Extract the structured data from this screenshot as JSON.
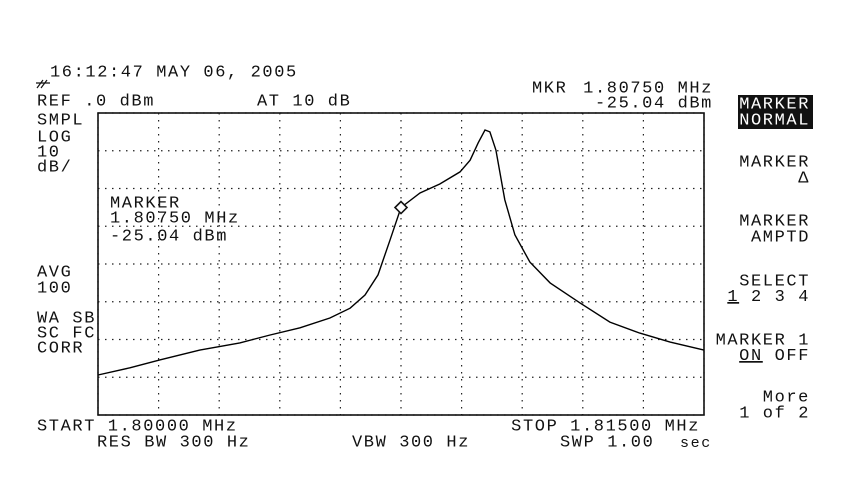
{
  "header": {
    "timestamp": "16:12:47 MAY 06, 2005",
    "ref": "REF .0 dBm",
    "atten": "AT 10 dB",
    "marker_readout_label": "MKR"
  },
  "left_annotations": [
    "SMPL",
    "LOG",
    "10",
    "dB/",
    "AVG",
    "100",
    "WA SB",
    "SC FC",
    "CORR"
  ],
  "footer": {
    "start": "START 1.80000 MHz",
    "stop": "STOP 1.81500 MHz",
    "rbw": "RES BW 300 Hz",
    "vbw": "VBW 300 Hz",
    "sweep": "SWP 1.00",
    "sweep_unit": "sec"
  },
  "softkeys": [
    {
      "lines": [
        "MARKER",
        "NORMAL"
      ],
      "active": true
    },
    {
      "lines": [
        "MARKER",
        "Δ"
      ]
    },
    {
      "lines": [
        "MARKER",
        "AMPTD"
      ]
    },
    {
      "lines": [
        "SELECT"
      ],
      "options": [
        "1",
        "2",
        "3",
        "4"
      ]
    },
    {
      "lines": [
        "MARKER 1"
      ],
      "options": [
        "ON",
        "OFF"
      ]
    },
    {
      "lines": [
        "More",
        "1 of 2"
      ]
    }
  ],
  "chart_data": {
    "type": "line",
    "x": [
      1.8,
      1.80079,
      1.80153,
      1.80252,
      1.80351,
      1.80426,
      1.805,
      1.80574,
      1.80624,
      1.80661,
      1.80693,
      1.80723,
      1.8075,
      1.80797,
      1.80846,
      1.80896,
      1.80921,
      1.80941,
      1.80958,
      1.8097,
      1.80985,
      1.81007,
      1.81032,
      1.81069,
      1.81119,
      1.81193,
      1.81267,
      1.81341,
      1.81416,
      1.815
    ],
    "series": [
      {
        "color": "#000000",
        "values": [
          -69.4,
          -67.5,
          -65.4,
          -62.8,
          -60.9,
          -58.8,
          -56.9,
          -54.3,
          -51.7,
          -48.2,
          -42.9,
          -33.6,
          -25.04,
          -21.2,
          -18.8,
          -15.6,
          -12.5,
          -7.9,
          -4.5,
          -5.0,
          -9.8,
          -23.0,
          -32.3,
          -39.5,
          -45.0,
          -50.3,
          -55.4,
          -58.3,
          -60.7,
          -62.8
        ]
      }
    ],
    "xlim": [
      1.8,
      1.815
    ],
    "ylim": [
      -80,
      0
    ],
    "xticks": [
      1.8,
      1.8015,
      1.803,
      1.8045,
      1.806,
      1.8075,
      1.809,
      1.8105,
      1.812,
      1.8135,
      1.815
    ],
    "yticks": [
      -80,
      -70,
      -60,
      -50,
      -40,
      -30,
      -20,
      -10,
      0
    ],
    "grid": true,
    "marker": {
      "title": "MARKER",
      "x": 1.8075,
      "y": -25.04,
      "x_label": "1.80750 MHz",
      "y_label": "-25.04 dBm"
    }
  }
}
